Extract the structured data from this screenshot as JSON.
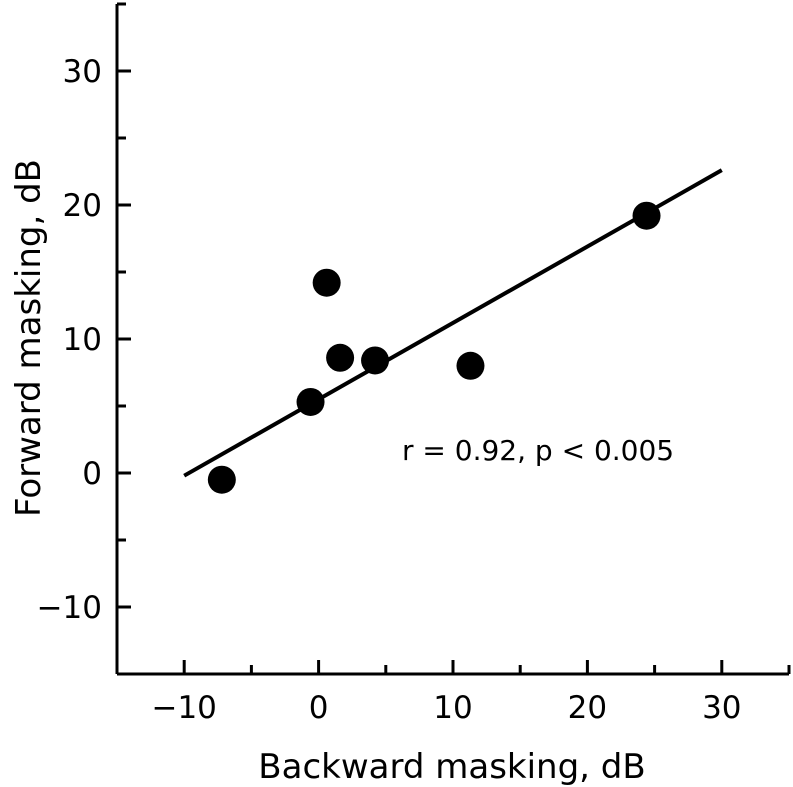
{
  "chart_data": {
    "type": "scatter",
    "title": "",
    "xlabel": "Backward masking, dB",
    "ylabel": "Forward masking, dB",
    "xlim": [
      -15,
      35
    ],
    "ylim": [
      -15,
      35
    ],
    "xticks": [
      -10,
      0,
      10,
      20,
      30
    ],
    "yticks": [
      -10,
      0,
      10,
      20,
      30
    ],
    "xtick_labels": [
      "−10",
      "0",
      "10",
      "20",
      "30"
    ],
    "ytick_labels": [
      "−10",
      "0",
      "10",
      "20",
      "30"
    ],
    "minor_tick_step": 5,
    "grid": false,
    "legend": "none",
    "points": [
      {
        "x": -7.2,
        "y": -0.5
      },
      {
        "x": -0.6,
        "y": 5.3
      },
      {
        "x": 0.6,
        "y": 14.2
      },
      {
        "x": 1.6,
        "y": 8.6
      },
      {
        "x": 4.2,
        "y": 8.4
      },
      {
        "x": 11.3,
        "y": 8.0
      },
      {
        "x": 24.4,
        "y": 19.2
      }
    ],
    "regression_line": {
      "x": [
        -10,
        30
      ],
      "y": [
        -0.2,
        22.6
      ]
    },
    "annotation": "r = 0.92, p < 0.005",
    "colors": {
      "marker": "#000000",
      "line": "#000000",
      "axis": "#000000"
    }
  }
}
